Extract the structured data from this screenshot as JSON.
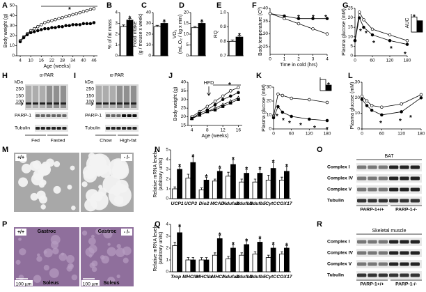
{
  "panel_labels": [
    "A",
    "B",
    "C",
    "D",
    "E",
    "F",
    "G",
    "H",
    "I",
    "J",
    "K",
    "L",
    "M",
    "N",
    "O",
    "P",
    "Q",
    "R"
  ],
  "chart_data": [
    {
      "type": "line",
      "ylabel": [
        "Body weight (g)"
      ],
      "xlabel": "Age (weeks)",
      "ylim": [
        0,
        50
      ],
      "yticks": [
        0,
        10,
        20,
        30,
        40,
        50
      ],
      "xlim": [
        2,
        48
      ],
      "xticks": [
        4,
        10,
        16,
        22,
        28,
        34,
        40,
        46
      ],
      "x": [
        4,
        6,
        8,
        10,
        12,
        14,
        16,
        18,
        20,
        22,
        24,
        26,
        28,
        30,
        32,
        34,
        36,
        38,
        40,
        42,
        44,
        46
      ],
      "series": [
        {
          "color": "#ffffff",
          "marker": "circle",
          "values": [
            15,
            19,
            22,
            25,
            27,
            29,
            31,
            33,
            34,
            35,
            36,
            37,
            38,
            39,
            40,
            41,
            42,
            43,
            44,
            45,
            46,
            47
          ]
        },
        {
          "color": "#000000",
          "marker": "circle",
          "values": [
            14,
            18,
            21,
            23,
            24,
            25,
            26,
            27,
            27,
            28,
            28,
            29,
            29,
            30,
            30,
            31,
            31,
            31,
            32,
            32,
            32,
            33
          ]
        }
      ],
      "annotations": [
        "*"
      ]
    },
    {
      "type": "bar",
      "ylabel": [
        "% of fat mass"
      ],
      "ylim": [
        0,
        4
      ],
      "yticks": [
        0,
        1,
        2,
        3,
        4
      ],
      "series": [
        {
          "color": "#ffffff",
          "values": [
            2.7
          ],
          "errors": [
            0.15
          ]
        },
        {
          "color": "#000000",
          "values": [
            3.3
          ],
          "errors": [
            0.15
          ]
        }
      ],
      "annotations": [
        "*"
      ]
    },
    {
      "type": "bar",
      "ylabel": [
        "Food intake",
        "(g / mouse x week)"
      ],
      "ylim": [
        0,
        40
      ],
      "yticks": [
        0,
        10,
        20,
        30,
        40
      ],
      "series": [
        {
          "color": "#ffffff",
          "values": [
            27
          ],
          "errors": [
            1.2
          ]
        },
        {
          "color": "#000000",
          "values": [
            30
          ],
          "errors": [
            1.2
          ]
        }
      ],
      "annotations": [
        "*"
      ]
    },
    {
      "type": "bar",
      "ylabel": [
        "VO₂",
        "(mL.O₂ / kg x min)"
      ],
      "ylim": [
        0,
        20
      ],
      "yticks": [
        0,
        5,
        10,
        15,
        20
      ],
      "series": [
        {
          "color": "#ffffff",
          "values": [
            13
          ],
          "errors": [
            0.6
          ]
        },
        {
          "color": "#000000",
          "values": [
            15
          ],
          "errors": [
            0.6
          ]
        }
      ],
      "annotations": [
        "*"
      ]
    },
    {
      "type": "bar",
      "ylabel": [
        "RQ"
      ],
      "ylim": [
        0.7,
        1
      ],
      "yticks": [
        0.7,
        0.8,
        0.9,
        {
          "value": 1,
          "label": "1.0"
        }
      ],
      "series": [
        {
          "color": "#ffffff",
          "values": [
            0.8
          ],
          "errors": [
            0.01
          ]
        },
        {
          "color": "#000000",
          "values": [
            0.83
          ],
          "errors": [
            0.01
          ]
        }
      ],
      "annotations": [
        "*"
      ]
    },
    {
      "type": "line",
      "ylabel": [
        "Body temperature (Cº)"
      ],
      "xlabel": "Time in cold (hrs)",
      "ylim": [
        22,
        40
      ],
      "yticks": [
        25,
        30,
        35,
        40
      ],
      "xlim": [
        0,
        4
      ],
      "xticks": [
        0,
        1,
        2,
        3,
        4
      ],
      "x": [
        0,
        1,
        2,
        3,
        4
      ],
      "series": [
        {
          "color": "#000000",
          "marker": "circle",
          "values": [
            38,
            37,
            36,
            36,
            36
          ]
        },
        {
          "color": "#ffffff",
          "marker": "circle",
          "values": [
            38,
            36,
            34,
            32,
            30
          ]
        }
      ],
      "annotations": [
        "*",
        "*",
        "*"
      ]
    },
    {
      "type": "line",
      "ylabel": [
        "Plasma glucose (mM)"
      ],
      "ylim": [
        0,
        25
      ],
      "yticks": [
        0,
        5,
        10,
        15,
        20,
        25
      ],
      "xlim": [
        0,
        180
      ],
      "xticks": [
        0,
        60,
        120,
        180
      ],
      "x": [
        0,
        15,
        30,
        60,
        120,
        180
      ],
      "series": [
        {
          "color": "#ffffff",
          "marker": "circle",
          "values": [
            8,
            23,
            19,
            14,
            11,
            8
          ]
        },
        {
          "color": "#000000",
          "marker": "circle",
          "values": [
            8,
            20,
            15,
            11,
            8,
            6
          ]
        }
      ],
      "annotations": [
        "*",
        "*",
        "*",
        "*",
        "*"
      ]
    },
    {
      "type": "bar",
      "ylabel": [
        "AUC"
      ],
      "ylim": [
        0,
        1.2
      ],
      "series": [
        {
          "color": "#ffffff",
          "values": [
            1
          ]
        },
        {
          "color": "#000000",
          "values": [
            0.75
          ]
        }
      ],
      "annotations": [
        "*"
      ]
    },
    {
      "type": "line",
      "ylabel": [
        "Body weight (g)"
      ],
      "xlabel": "Age (weeks)",
      "note": "HFD",
      "ylim": [
        15,
        40
      ],
      "yticks": [
        15,
        20,
        25,
        30,
        35,
        40
      ],
      "xlim": [
        3,
        17
      ],
      "xticks": [
        4,
        8,
        12,
        16
      ],
      "x": [
        4,
        6,
        8,
        10,
        12,
        14,
        16
      ],
      "series": [
        {
          "color": "#ffffff",
          "marker": "circle",
          "values": [
            20,
            23,
            26,
            29,
            32,
            35,
            37
          ]
        },
        {
          "color": "#000000",
          "marker": "circle",
          "values": [
            19,
            22,
            24,
            27,
            30,
            32,
            34
          ]
        },
        {
          "color": "#ffffff",
          "marker": "triangle",
          "values": [
            19,
            21,
            23,
            25,
            27,
            29,
            31
          ]
        },
        {
          "color": "#000000",
          "marker": "square",
          "values": [
            19,
            21,
            23,
            24,
            26,
            28,
            30
          ]
        }
      ],
      "annotations": [
        "*"
      ]
    },
    {
      "type": "line",
      "ylabel": [
        "Plasma glucose (mM)"
      ],
      "ylim": [
        0,
        30
      ],
      "yticks": [
        0,
        10,
        20,
        30
      ],
      "xlim": [
        0,
        180
      ],
      "xticks": [
        0,
        60,
        120,
        180
      ],
      "x": [
        0,
        15,
        30,
        60,
        120,
        180
      ],
      "series": [
        {
          "color": "#ffffff",
          "marker": "circle",
          "values": [
            9,
            25,
            24,
            22,
            21,
            19
          ]
        },
        {
          "color": "#000000",
          "marker": "circle",
          "values": [
            8,
            16,
            12,
            9,
            7,
            6
          ]
        }
      ],
      "annotations": [
        "*",
        "*",
        "*",
        "*",
        "*",
        "*"
      ]
    },
    {
      "type": "bar",
      "ylim": [
        0,
        1.2
      ],
      "series": [
        {
          "color": "#ffffff",
          "values": [
            1
          ]
        },
        {
          "color": "#000000",
          "values": [
            0.5
          ]
        }
      ],
      "annotations": [
        "*"
      ]
    },
    {
      "type": "line",
      "ylabel": [
        "Plasma glucose (mM)"
      ],
      "ylim": [
        0,
        30
      ],
      "yticks": [
        0,
        10,
        20,
        30
      ],
      "xlim": [
        0,
        180
      ],
      "xticks": [
        0,
        60,
        120,
        180
      ],
      "x": [
        0,
        15,
        30,
        60,
        120,
        180
      ],
      "series": [
        {
          "color": "#ffffff",
          "marker": "circle",
          "values": [
            21,
            18,
            15,
            14,
            16,
            22
          ]
        },
        {
          "color": "#000000",
          "marker": "circle",
          "values": [
            19,
            15,
            12,
            9,
            11,
            20
          ]
        }
      ],
      "annotations": [
        "*",
        "*",
        "*"
      ]
    },
    {
      "type": "bar",
      "ylabel": [
        "Relative mRNA levels",
        "(arbitrary units)"
      ],
      "ylim": [
        0,
        5
      ],
      "yticks": [
        0,
        1,
        2,
        3,
        4,
        5
      ],
      "categories": [
        "UCP1",
        "UCP3",
        "Dio2",
        "MCAD",
        "Ndufa2",
        "Ndufb3",
        "Ndufb5",
        "CytC",
        "COX17"
      ],
      "series": [
        {
          "color": "#ffffff",
          "values": [
            1,
            2.1,
            0.9,
            1.8,
            2.3,
            1.7,
            1.7,
            1.9,
            1.9
          ],
          "errors": [
            0.2,
            0.4,
            0.2,
            0.2,
            0.4,
            0.3,
            0.3,
            0.5,
            0.3
          ]
        },
        {
          "color": "#000000",
          "values": [
            3,
            3.7,
            1.9,
            2.8,
            3.5,
            2.6,
            2.6,
            3.1,
            2.8
          ],
          "errors": [
            0.3,
            0.6,
            0.3,
            0.3,
            0.5,
            0.4,
            0.4,
            0.6,
            0.5
          ]
        }
      ],
      "annotations": [
        "*",
        "*",
        "*",
        "*",
        "*",
        "*",
        "*",
        "*",
        "*"
      ]
    },
    {
      "type": "bar",
      "ylabel": [
        "Relative mRNA levels",
        "(arbitrary units)"
      ],
      "ylim": [
        0,
        4
      ],
      "yticks": [
        0,
        1,
        2,
        3,
        4
      ],
      "categories": [
        "Trop I",
        "MHCIIx",
        "MHCIIa",
        "MHCI",
        "Ndufa2",
        "Ndufb3",
        "Ndufb5",
        "CytC",
        "COX17"
      ],
      "series": [
        {
          "color": "#ffffff",
          "values": [
            2.2,
            1,
            1,
            1.4,
            1.1,
            1.4,
            1.5,
            1.2,
            1.5
          ],
          "errors": [
            0.3,
            0.2,
            0.2,
            0.2,
            0.2,
            0.2,
            0.2,
            0.2,
            0.2
          ]
        },
        {
          "color": "#000000",
          "values": [
            3.3,
            1,
            1,
            2.8,
            2,
            2.3,
            2.5,
            2,
            2
          ],
          "errors": [
            0.5,
            0.2,
            0.2,
            0.3,
            0.3,
            0.3,
            0.3,
            0.3,
            0.2
          ]
        }
      ],
      "annotations": [
        "*",
        "*",
        "*",
        "*",
        "*",
        "*",
        "*"
      ]
    }
  ],
  "blots": [
    {
      "title": "α-PAR",
      "unit": "kDa",
      "markers": [
        "250",
        "150",
        "100"
      ],
      "rows": [
        "PARP-1",
        "Tubulin"
      ],
      "groups": [
        "Fed",
        "Fasted"
      ]
    },
    {
      "title": "α-PAR",
      "unit": "kDa",
      "markers": [
        "250",
        "150",
        "100"
      ],
      "rows": [
        "PARP-1",
        "Tubulin"
      ],
      "groups": [
        "Chow",
        "High-fat"
      ]
    },
    {
      "title": "BAT",
      "rows": [
        "Complex I",
        "Complex IV",
        "Complex V",
        "Tubulin"
      ],
      "groups": [
        "PARP-1+/+",
        "PARP-1-/-"
      ]
    },
    {
      "title": "Skeletal muscle",
      "rows": [
        "Complex I",
        "Complex IV",
        "Complex V",
        "Tubulin"
      ],
      "groups": [
        "PARP-1+/+",
        "PARP-1-/-"
      ]
    }
  ],
  "micrographs": [
    {
      "panels": [
        {
          "genotype": "+/+"
        },
        {
          "genotype": "- /-"
        }
      ]
    },
    {
      "panels": [
        {
          "genotype": "+/+",
          "labels": [
            "Gastroc",
            "Soleus"
          ],
          "scale": "100 µm"
        },
        {
          "genotype": "- /-",
          "labels": [
            "Gastroc",
            "Soleus"
          ],
          "scale": "100 µm"
        }
      ]
    }
  ]
}
